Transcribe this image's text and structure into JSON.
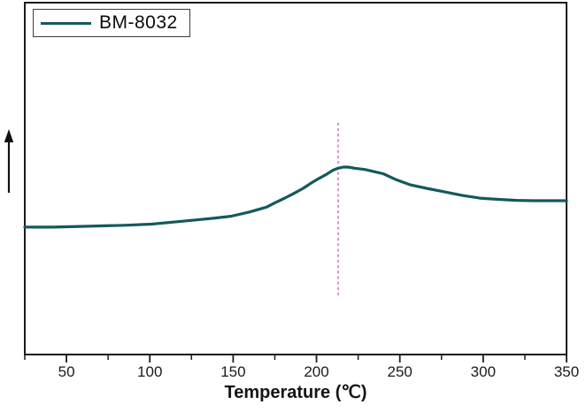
{
  "legend": {
    "entries": [
      {
        "label": "BM-8032"
      }
    ]
  },
  "chart_data": {
    "type": "line",
    "title": "",
    "xlabel": "Temperature (℃)",
    "ylabel": "",
    "y_axis_note": "unlabeled vertical axis, increasing direction shown by upward arrow",
    "xlim": [
      25,
      350
    ],
    "ylim": [
      -2.1,
      3.7
    ],
    "x_ticks_major": [
      50,
      100,
      150,
      200,
      250,
      300,
      350
    ],
    "x_ticks_minor": [
      25,
      75,
      125,
      175,
      225,
      275,
      325
    ],
    "grid": false,
    "legend_position": "top-left",
    "axis_color": "#1a1a1a",
    "series": [
      {
        "name": "BM-8032",
        "color": "#13595c",
        "x": [
          25,
          42,
          63,
          85,
          101,
          117,
          128,
          138,
          149,
          160,
          170,
          175,
          181,
          186,
          192,
          197,
          202,
          206,
          210,
          213,
          216,
          219,
          223,
          229,
          240,
          248,
          256,
          266,
          277,
          288,
          298,
          309,
          320,
          330,
          340,
          350
        ],
        "y": [
          0,
          0,
          0.015,
          0.03,
          0.05,
          0.09,
          0.12,
          0.145,
          0.18,
          0.25,
          0.33,
          0.4,
          0.48,
          0.55,
          0.64,
          0.73,
          0.81,
          0.87,
          0.94,
          0.97,
          0.99,
          0.99,
          0.97,
          0.95,
          0.88,
          0.78,
          0.7,
          0.64,
          0.58,
          0.52,
          0.478,
          0.457,
          0.442,
          0.435,
          0.435,
          0.435
        ]
      }
    ],
    "peak_marker": {
      "x": 213,
      "y_top": 1.72,
      "y_bottom": -1.16,
      "color": "#c75fc0",
      "style": "dashed"
    }
  }
}
